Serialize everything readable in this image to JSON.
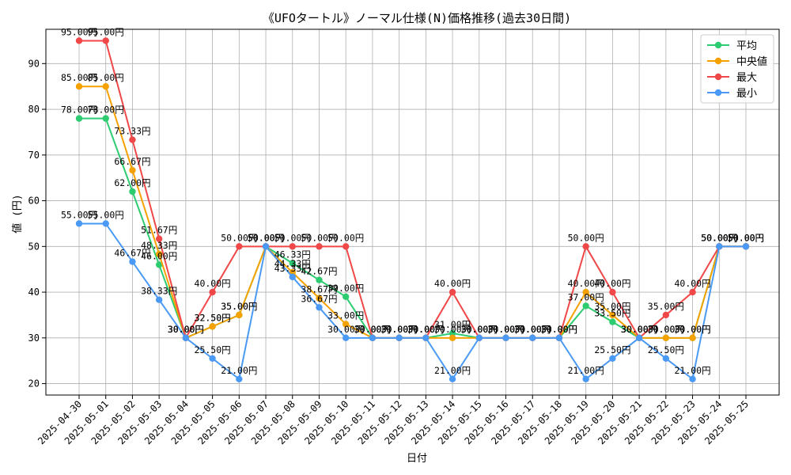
{
  "chart_data": {
    "type": "line",
    "title": "《UFOタートル》ノーマル仕様(N)価格推移(過去30日間)",
    "xlabel": "日付",
    "ylabel": "値 (円)",
    "value_suffix": "円",
    "ylim": [
      17.5,
      97.5
    ],
    "yticks": [
      20,
      30,
      40,
      50,
      60,
      70,
      80,
      90
    ],
    "grid": true,
    "legend_position": "top-right",
    "categories": [
      "2025-04-30",
      "2025-05-01",
      "2025-05-02",
      "2025-05-03",
      "2025-05-04",
      "2025-05-05",
      "2025-05-06",
      "2025-05-07",
      "2025-05-08",
      "2025-05-09",
      "2025-05-10",
      "2025-05-11",
      "2025-05-12",
      "2025-05-13",
      "2025-05-14",
      "2025-05-15",
      "2025-05-16",
      "2025-05-17",
      "2025-05-18",
      "2025-05-19",
      "2025-05-20",
      "2025-05-21",
      "2025-05-22",
      "2025-05-23",
      "2025-05-24",
      "2025-05-25"
    ],
    "series": [
      {
        "name": "平均",
        "color": "#2ecc71",
        "values": [
          78.0,
          78.0,
          62.0,
          46.0,
          30.0,
          32.5,
          35.0,
          50.0,
          46.33,
          42.67,
          39.0,
          30.0,
          30.0,
          30.0,
          31.0,
          30.0,
          30.0,
          30.0,
          30.0,
          37.0,
          33.5,
          30.0,
          30.0,
          30.0,
          50.0,
          50.0
        ]
      },
      {
        "name": "中央値",
        "color": "#f5a200",
        "values": [
          85.0,
          85.0,
          66.67,
          48.33,
          30.0,
          32.5,
          35.0,
          50.0,
          44.33,
          38.67,
          33.0,
          30.0,
          30.0,
          30.0,
          30.0,
          30.0,
          30.0,
          30.0,
          30.0,
          40.0,
          35.0,
          30.0,
          30.0,
          30.0,
          50.0,
          50.0
        ]
      },
      {
        "name": "最大",
        "color": "#f04848",
        "values": [
          95.0,
          95.0,
          73.33,
          51.67,
          30.0,
          40.0,
          50.0,
          50.0,
          50.0,
          50.0,
          50.0,
          30.0,
          30.0,
          30.0,
          40.0,
          30.0,
          30.0,
          30.0,
          30.0,
          50.0,
          40.0,
          30.0,
          35.0,
          40.0,
          50.0,
          50.0
        ]
      },
      {
        "name": "最小",
        "color": "#4a9af5",
        "values": [
          55.0,
          55.0,
          46.67,
          38.33,
          30.0,
          25.5,
          21.0,
          50.0,
          43.33,
          36.67,
          30.0,
          30.0,
          30.0,
          30.0,
          21.0,
          30.0,
          30.0,
          30.0,
          30.0,
          21.0,
          25.5,
          30.0,
          25.5,
          21.0,
          50.0,
          50.0
        ]
      }
    ]
  }
}
